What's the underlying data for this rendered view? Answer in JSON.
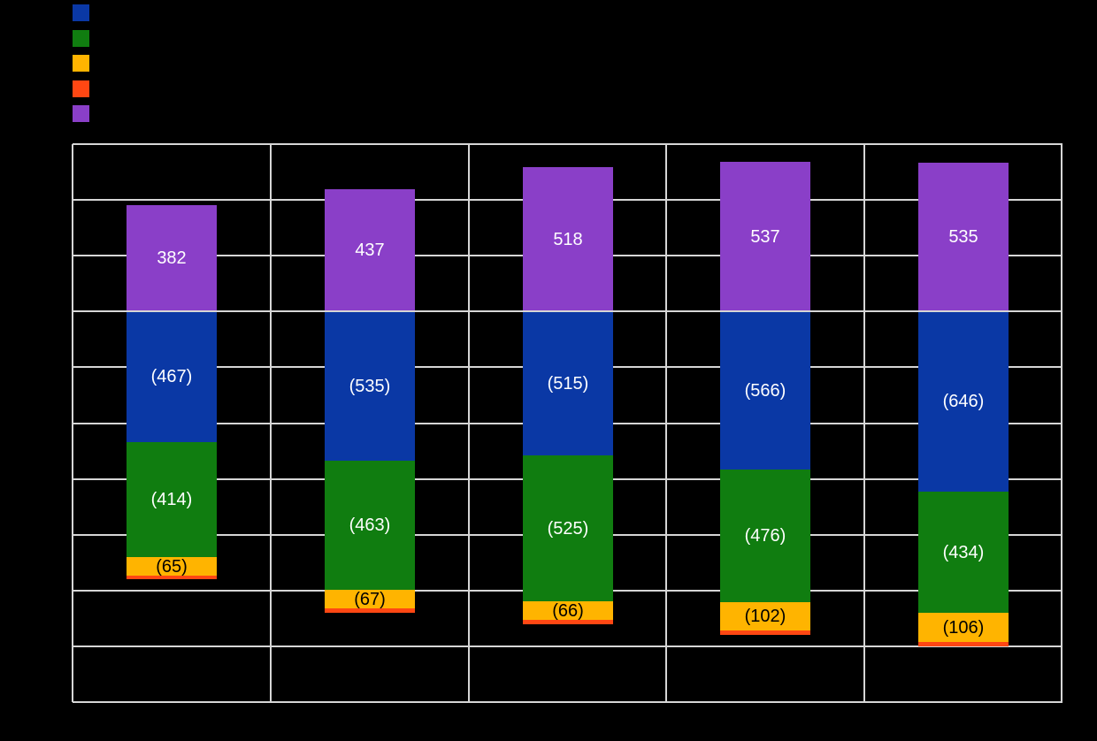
{
  "title": "",
  "legend": {
    "items": [
      {
        "label": "",
        "color": "#0A38A5"
      },
      {
        "label": "",
        "color": "#107D10"
      },
      {
        "label": "",
        "color": "#FFB400"
      },
      {
        "label": "",
        "color": "#FF4713"
      },
      {
        "label": "",
        "color": "#8A3FC8"
      }
    ]
  },
  "chart_data": {
    "type": "bar",
    "stacked": true,
    "background_color": "#000000",
    "gridline_color": "#D6D6D6",
    "grid": true,
    "legend_position": "top-left",
    "categories": [
      "",
      "",
      "",
      "",
      ""
    ],
    "x_tick_labels_visible": false,
    "y_tick_labels_visible": false,
    "ylim": [
      -1400,
      600
    ],
    "gridline_interval": 200,
    "series": [
      {
        "name": "",
        "color": "#0A38A5",
        "label_color": "#FFFFFF",
        "values": [
          -467,
          -535,
          -515,
          -566,
          -646
        ],
        "data_labels": [
          "(467)",
          "(535)",
          "(515)",
          "(566)",
          "(646)"
        ]
      },
      {
        "name": "",
        "color": "#107D10",
        "label_color": "#FFFFFF",
        "values": [
          -414,
          -463,
          -525,
          -476,
          -434
        ],
        "data_labels": [
          "(414)",
          "(463)",
          "(525)",
          "(476)",
          "(434)"
        ]
      },
      {
        "name": "",
        "color": "#FFB400",
        "label_color": "#000000",
        "values": [
          -65,
          -67,
          -66,
          -102,
          -106
        ],
        "data_labels": [
          "(65)",
          "(67)",
          "(66)",
          "(102)",
          "(106)"
        ]
      },
      {
        "name": "",
        "color": "#FF4713",
        "label_color": "#000000",
        "values": [
          -15,
          -15,
          -15,
          -16,
          -15
        ],
        "values_estimated": true,
        "data_labels": [
          "",
          "",
          "",
          "",
          ""
        ]
      },
      {
        "name": "",
        "color": "#8A3FC8",
        "label_color": "#FFFFFF",
        "values": [
          382,
          437,
          518,
          537,
          535
        ],
        "data_labels": [
          "382",
          "437",
          "518",
          "537",
          "535"
        ]
      }
    ]
  }
}
